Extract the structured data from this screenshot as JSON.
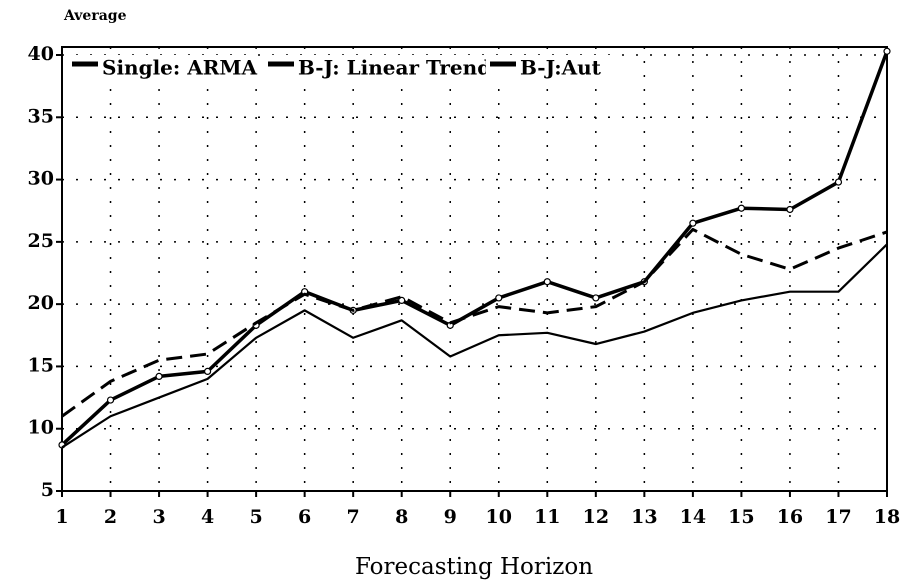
{
  "chart_data": {
    "type": "line",
    "ylabel": "Average",
    "xlabel": "Forecasting Horizon",
    "x": [
      1,
      2,
      3,
      4,
      5,
      6,
      7,
      8,
      9,
      10,
      11,
      12,
      13,
      14,
      15,
      16,
      17,
      18
    ],
    "xlim": [
      1,
      18
    ],
    "xticks": [
      1,
      2,
      3,
      4,
      5,
      6,
      7,
      8,
      9,
      10,
      11,
      12,
      13,
      14,
      15,
      16,
      17,
      18
    ],
    "ylim": [
      5,
      40
    ],
    "yticks": [
      5,
      10,
      15,
      20,
      25,
      30,
      35,
      40
    ],
    "grid": true,
    "legend": "top",
    "series": [
      {
        "name": "Single: ARMA",
        "color": "#000000",
        "style": "solid-markers",
        "values": [
          8.7,
          12.3,
          14.2,
          14.6,
          18.3,
          21.0,
          19.5,
          20.3,
          18.3,
          20.5,
          21.8,
          20.5,
          21.8,
          26.5,
          27.7,
          27.6,
          29.8,
          40.3
        ]
      },
      {
        "name": "B-J: Linear Trend",
        "color": "#000000",
        "style": "dashed",
        "values": [
          11.0,
          13.8,
          15.5,
          16.0,
          18.5,
          20.8,
          19.5,
          20.6,
          18.5,
          19.8,
          19.3,
          19.8,
          21.8,
          26.0,
          24.0,
          22.8,
          24.5,
          25.8
        ]
      },
      {
        "name": "B-J:Aut",
        "color": "#000000",
        "style": "solid",
        "values": [
          8.5,
          11.0,
          12.5,
          14.0,
          17.3,
          19.5,
          17.3,
          18.7,
          15.8,
          17.5,
          17.7,
          16.8,
          17.8,
          19.3,
          20.3,
          21.0,
          21.0,
          24.8
        ]
      }
    ]
  }
}
